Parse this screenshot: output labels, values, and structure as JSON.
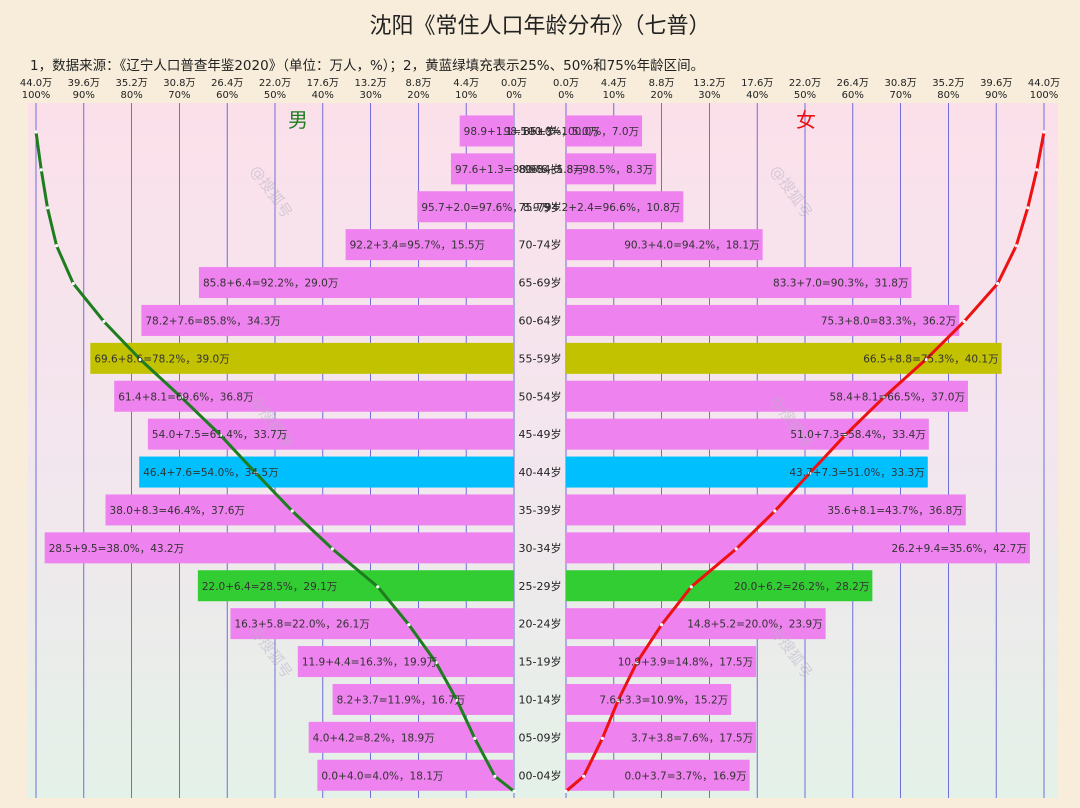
{
  "title": "沈阳《常住人口年龄分布》（七普）",
  "note": "1，数据来源：《辽宁人口普查年鉴2020》（单位：万人，%）；2，黄蓝绿填充表示25%、50%和75%年龄区间。",
  "male_label": "男",
  "female_label": "女",
  "watermark": "@搜狐号",
  "colors": {
    "bar": "#ee82ee",
    "q25": "#32cd32",
    "q50": "#00bfff",
    "q75": "#c2c200",
    "male_line": "#1e7d1e",
    "female_line": "#ee1111",
    "grid": "#4f4fd4"
  },
  "chart_data": {
    "type": "bar",
    "orientation": "horizontal-pyramid",
    "xlim_value": [
      0,
      44.0
    ],
    "xlim_percent": [
      0,
      100
    ],
    "x_ticks_value": [
      "44.0万",
      "39.6万",
      "35.2万",
      "30.8万",
      "26.4万",
      "22.0万",
      "17.6万",
      "13.2万",
      "8.8万",
      "4.4万",
      "0.0万"
    ],
    "x_ticks_percent": [
      "100%",
      "90%",
      "80%",
      "70%",
      "60%",
      "50%",
      "40%",
      "30%",
      "20%",
      "10%",
      "0%"
    ],
    "categories": [
      "85+岁",
      "80-84岁",
      "75-79岁",
      "70-74岁",
      "65-69岁",
      "60-64岁",
      "55-59岁",
      "50-54岁",
      "45-49岁",
      "40-44岁",
      "35-39岁",
      "30-34岁",
      "25-29岁",
      "20-24岁",
      "15-19岁",
      "10-14岁",
      "05-09岁",
      "00-04岁"
    ],
    "series": [
      {
        "name": "男",
        "values": [
          5.0,
          5.8,
          8.9,
          15.5,
          29.0,
          34.3,
          39.0,
          36.8,
          33.7,
          34.5,
          37.6,
          43.2,
          29.1,
          26.1,
          19.9,
          16.7,
          18.9,
          18.1
        ],
        "cumulative_percent": [
          100.0,
          98.9,
          97.6,
          95.7,
          92.2,
          85.8,
          78.2,
          69.6,
          61.4,
          54.0,
          46.4,
          38.0,
          28.5,
          22.0,
          16.3,
          11.9,
          8.2,
          4.0
        ],
        "fill": [
          "",
          "",
          "",
          "",
          "",
          "",
          "q75",
          "",
          "",
          "q50",
          "",
          "",
          "q25",
          "",
          "",
          "",
          "",
          ""
        ],
        "labels": [
          "98.9+1.1=100.0%，5.0万",
          "97.6+1.3=98.9%，5.8万",
          "95.7+2.0=97.6%，8.9万",
          "92.2+3.4=95.7%，15.5万",
          "85.8+6.4=92.2%，29.0万",
          "78.2+7.6=85.8%，34.3万",
          "69.6+8.6=78.2%，39.0万",
          "61.4+8.1=69.6%，36.8万",
          "54.0+7.5=61.4%，33.7万",
          "46.4+7.6=54.0%，34.5万",
          "38.0+8.3=46.4%，37.6万",
          "28.5+9.5=38.0%，43.2万",
          "22.0+6.4=28.5%，29.1万",
          "16.3+5.8=22.0%，26.1万",
          "11.9+4.4=16.3%，19.9万",
          "8.2+3.7=11.9%，16.7万",
          "4.0+4.2=8.2%，18.9万",
          "0.0+4.0=4.0%，18.1万"
        ]
      },
      {
        "name": "女",
        "values": [
          7.0,
          8.3,
          10.8,
          18.1,
          31.8,
          36.2,
          40.1,
          37.0,
          33.4,
          33.3,
          36.8,
          42.7,
          28.2,
          23.9,
          17.5,
          15.2,
          17.5,
          16.9
        ],
        "cumulative_percent": [
          100.0,
          98.5,
          96.6,
          94.2,
          90.3,
          83.3,
          75.3,
          66.5,
          58.4,
          51.0,
          43.7,
          35.6,
          26.2,
          20.0,
          14.8,
          10.9,
          7.6,
          3.7
        ],
        "fill": [
          "",
          "",
          "",
          "",
          "",
          "",
          "q75",
          "",
          "",
          "q50",
          "",
          "",
          "q25",
          "",
          "",
          "",
          "",
          ""
        ],
        "labels": [
          "98.5+1.5=100.0%，7.0万",
          "96.6+1.8=98.5%，8.3万",
          "94.2+2.4=96.6%，10.8万",
          "90.3+4.0=94.2%，18.1万",
          "83.3+7.0=90.3%，31.8万",
          "75.3+8.0=83.3%，36.2万",
          "66.5+8.8=75.3%，40.1万",
          "58.4+8.1=66.5%，37.0万",
          "51.0+7.3=58.4%，33.4万",
          "43.7+7.3=51.0%，33.3万",
          "35.6+8.1=43.7%，36.8万",
          "26.2+9.4=35.6%，42.7万",
          "20.0+6.2=26.2%，28.2万",
          "14.8+5.2=20.0%，23.9万",
          "10.9+3.9=14.8%，17.5万",
          "7.6+3.3=10.9%，15.2万",
          "3.7+3.8=7.6%，17.5万",
          "0.0+3.7=3.7%，16.9万"
        ]
      }
    ]
  }
}
